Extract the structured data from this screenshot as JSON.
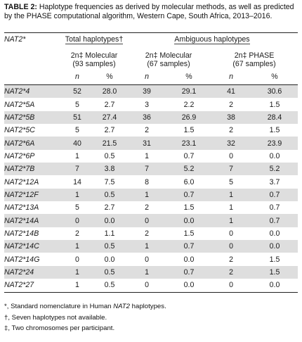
{
  "caption": {
    "label": "TABLE 2:",
    "text": " Haplotype frequencies as derived by molecular methods, as well as predicted by the PHASE computational algorithm, Western Cape, South Africa, 2013–2016."
  },
  "table": {
    "row_header": "NAT2*",
    "group_total": "Total haplotypes†",
    "group_ambiguous": "Ambiguous haplotypes",
    "col_total_mol_line1": "2n‡ Molecular",
    "col_total_mol_line2": "(93 samples)",
    "col_amb_mol_line1": "2n‡ Molecular",
    "col_amb_mol_line2": "(67 samples)",
    "col_amb_phase_line1": "2n‡ PHASE",
    "col_amb_phase_line2": "(67 samples)",
    "sub_n": "n",
    "sub_pct": "%",
    "rows": [
      {
        "gene": "NAT2*4",
        "v": [
          "52",
          "28.0",
          "39",
          "29.1",
          "41",
          "30.6"
        ]
      },
      {
        "gene": "NAT2*5A",
        "v": [
          "5",
          "2.7",
          "3",
          "2.2",
          "2",
          "1.5"
        ]
      },
      {
        "gene": "NAT2*5B",
        "v": [
          "51",
          "27.4",
          "36",
          "26.9",
          "38",
          "28.4"
        ]
      },
      {
        "gene": "NAT2*5C",
        "v": [
          "5",
          "2.7",
          "2",
          "1.5",
          "2",
          "1.5"
        ]
      },
      {
        "gene": "NAT2*6A",
        "v": [
          "40",
          "21.5",
          "31",
          "23.1",
          "32",
          "23.9"
        ]
      },
      {
        "gene": "NAT2*6P",
        "v": [
          "1",
          "0.5",
          "1",
          "0.7",
          "0",
          "0.0"
        ]
      },
      {
        "gene": "NAT2*7B",
        "v": [
          "7",
          "3.8",
          "7",
          "5.2",
          "7",
          "5.2"
        ]
      },
      {
        "gene": "NAT2*12A",
        "v": [
          "14",
          "7.5",
          "8",
          "6.0",
          "5",
          "3.7"
        ]
      },
      {
        "gene": "NAT2*12F",
        "v": [
          "1",
          "0.5",
          "1",
          "0.7",
          "1",
          "0.7"
        ]
      },
      {
        "gene": "NAT2*13A",
        "v": [
          "5",
          "2.7",
          "2",
          "1.5",
          "1",
          "0.7"
        ]
      },
      {
        "gene": "NAT2*14A",
        "v": [
          "0",
          "0.0",
          "0",
          "0.0",
          "1",
          "0.7"
        ]
      },
      {
        "gene": "NAT2*14B",
        "v": [
          "2",
          "1.1",
          "2",
          "1.5",
          "0",
          "0.0"
        ]
      },
      {
        "gene": "NAT2*14C",
        "v": [
          "1",
          "0.5",
          "1",
          "0.7",
          "0",
          "0.0"
        ]
      },
      {
        "gene": "NAT2*14G",
        "v": [
          "0",
          "0.0",
          "0",
          "0.0",
          "2",
          "1.5"
        ]
      },
      {
        "gene": "NAT2*24",
        "v": [
          "1",
          "0.5",
          "1",
          "0.7",
          "2",
          "1.5"
        ]
      },
      {
        "gene": "NAT2*27",
        "v": [
          "1",
          "0.5",
          "0",
          "0.0",
          "0",
          "0.0"
        ]
      }
    ]
  },
  "footnotes": {
    "f1_prefix": "*, Standard nomenclature in Human ",
    "f1_italic": "NAT2",
    "f1_suffix": " haplotypes.",
    "f2": "†, Seven haplotypes not available.",
    "f3": "‡, Two chromosomes per participant."
  }
}
